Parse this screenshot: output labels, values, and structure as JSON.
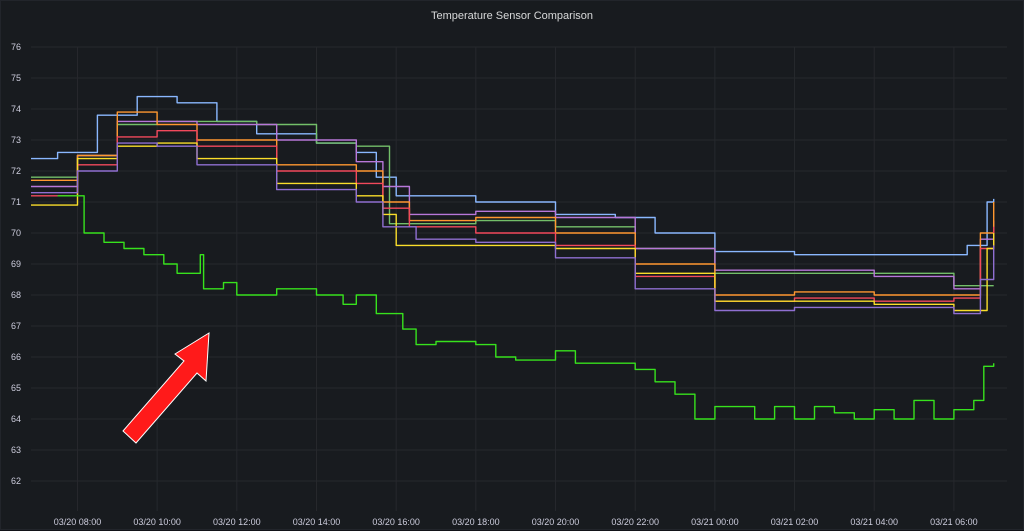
{
  "panel": {
    "title": "Temperature Sensor Comparison"
  },
  "chart_data": {
    "type": "line",
    "title": "Temperature Sensor Comparison",
    "xlabel": "",
    "ylabel": "",
    "x_time_format": "MM/DD HH:mm",
    "xlim": [
      "03/20 06:50",
      "03/21 07:20"
    ],
    "ylim": [
      62,
      76
    ],
    "yticks": [
      62,
      63,
      64,
      65,
      66,
      67,
      68,
      69,
      70,
      71,
      72,
      73,
      74,
      75,
      76
    ],
    "xticks": [
      "03/20 08:00",
      "03/20 10:00",
      "03/20 12:00",
      "03/20 14:00",
      "03/20 16:00",
      "03/20 18:00",
      "03/20 20:00",
      "03/20 22:00",
      "03/21 00:00",
      "03/21 02:00",
      "03/21 04:00",
      "03/21 06:00"
    ],
    "grid": true,
    "legend": "none",
    "annotation": "red arrow pointing at green (lowest) series near 03/20 11:45",
    "series": [
      {
        "color": "#8ab8ff",
        "points": [
          [
            "03/20 06:50",
            72.4
          ],
          [
            "03/20 07:30",
            72.6
          ],
          [
            "03/20 08:30",
            73.8
          ],
          [
            "03/20 09:30",
            74.4
          ],
          [
            "03/20 10:30",
            74.2
          ],
          [
            "03/20 11:30",
            73.6
          ],
          [
            "03/20 12:30",
            73.2
          ],
          [
            "03/20 14:00",
            72.9
          ],
          [
            "03/20 15:00",
            72.6
          ],
          [
            "03/20 15:30",
            71.8
          ],
          [
            "03/20 16:00",
            71.2
          ],
          [
            "03/20 18:00",
            71.0
          ],
          [
            "03/20 20:00",
            70.6
          ],
          [
            "03/20 21:30",
            70.5
          ],
          [
            "03/20 22:30",
            70.0
          ],
          [
            "03/21 00:00",
            69.4
          ],
          [
            "03/21 02:00",
            69.3
          ],
          [
            "03/21 04:00",
            69.3
          ],
          [
            "03/21 05:40",
            69.3
          ],
          [
            "03/21 06:20",
            69.6
          ],
          [
            "03/21 06:50",
            71.0
          ],
          [
            "03/21 07:00",
            71.1
          ]
        ]
      },
      {
        "color": "#73bf69",
        "points": [
          [
            "03/20 06:50",
            71.8
          ],
          [
            "03/20 08:00",
            72.5
          ],
          [
            "03/20 09:00",
            73.5
          ],
          [
            "03/20 10:00",
            73.6
          ],
          [
            "03/20 11:00",
            73.6
          ],
          [
            "03/20 12:30",
            73.5
          ],
          [
            "03/20 14:00",
            72.9
          ],
          [
            "03/20 15:00",
            72.8
          ],
          [
            "03/20 15:45",
            72.8
          ],
          [
            "03/20 15:50",
            70.3
          ],
          [
            "03/20 18:00",
            70.4
          ],
          [
            "03/20 20:00",
            70.2
          ],
          [
            "03/20 22:00",
            69.5
          ],
          [
            "03/21 00:00",
            68.7
          ],
          [
            "03/21 02:00",
            68.7
          ],
          [
            "03/21 04:00",
            68.7
          ],
          [
            "03/21 06:00",
            68.3
          ],
          [
            "03/21 07:00",
            68.3
          ]
        ]
      },
      {
        "color": "#b877d9",
        "points": [
          [
            "03/20 06:50",
            71.5
          ],
          [
            "03/20 08:00",
            72.5
          ],
          [
            "03/20 09:00",
            73.6
          ],
          [
            "03/20 10:00",
            73.6
          ],
          [
            "03/20 11:00",
            73.5
          ],
          [
            "03/20 13:00",
            73.0
          ],
          [
            "03/20 15:00",
            72.3
          ],
          [
            "03/20 15:40",
            71.5
          ],
          [
            "03/20 16:20",
            70.6
          ],
          [
            "03/20 18:00",
            70.7
          ],
          [
            "03/20 20:00",
            70.5
          ],
          [
            "03/20 22:00",
            69.5
          ],
          [
            "03/21 00:00",
            68.8
          ],
          [
            "03/21 02:00",
            68.8
          ],
          [
            "03/21 04:00",
            68.6
          ],
          [
            "03/21 06:00",
            68.2
          ],
          [
            "03/21 06:40",
            69.8
          ],
          [
            "03/21 07:00",
            70.4
          ]
        ]
      },
      {
        "color": "#ff9830",
        "points": [
          [
            "03/20 06:50",
            71.7
          ],
          [
            "03/20 08:00",
            72.5
          ],
          [
            "03/20 09:00",
            73.9
          ],
          [
            "03/20 10:00",
            73.5
          ],
          [
            "03/20 11:00",
            73.0
          ],
          [
            "03/20 13:00",
            72.2
          ],
          [
            "03/20 15:00",
            72.0
          ],
          [
            "03/20 15:40",
            71.0
          ],
          [
            "03/20 16:20",
            70.4
          ],
          [
            "03/20 18:00",
            70.5
          ],
          [
            "03/20 20:00",
            70.0
          ],
          [
            "03/20 22:00",
            69.0
          ],
          [
            "03/21 00:00",
            68.0
          ],
          [
            "03/21 02:00",
            68.1
          ],
          [
            "03/21 04:00",
            68.0
          ],
          [
            "03/21 06:00",
            68.0
          ],
          [
            "03/21 06:40",
            70.0
          ],
          [
            "03/21 07:00",
            71.0
          ]
        ]
      },
      {
        "color": "#f2495c",
        "points": [
          [
            "03/20 06:50",
            71.2
          ],
          [
            "03/20 08:00",
            72.2
          ],
          [
            "03/20 09:00",
            73.1
          ],
          [
            "03/20 10:00",
            73.3
          ],
          [
            "03/20 11:00",
            72.8
          ],
          [
            "03/20 13:00",
            72.0
          ],
          [
            "03/20 15:00",
            71.6
          ],
          [
            "03/20 15:40",
            70.8
          ],
          [
            "03/20 16:20",
            70.2
          ],
          [
            "03/20 18:00",
            70.0
          ],
          [
            "03/20 20:00",
            69.6
          ],
          [
            "03/20 22:00",
            68.6
          ],
          [
            "03/21 00:00",
            67.8
          ],
          [
            "03/21 02:00",
            67.9
          ],
          [
            "03/21 04:00",
            67.8
          ],
          [
            "03/21 06:00",
            67.9
          ],
          [
            "03/21 06:40",
            69.5
          ],
          [
            "03/21 07:00",
            70.2
          ]
        ]
      },
      {
        "color": "#fade2a",
        "points": [
          [
            "03/20 06:50",
            70.9
          ],
          [
            "03/20 07:30",
            70.9
          ],
          [
            "03/20 08:00",
            72.4
          ],
          [
            "03/20 09:00",
            72.8
          ],
          [
            "03/20 10:00",
            72.9
          ],
          [
            "03/20 11:00",
            72.4
          ],
          [
            "03/20 13:00",
            71.6
          ],
          [
            "03/20 15:00",
            71.2
          ],
          [
            "03/20 15:40",
            70.6
          ],
          [
            "03/20 16:00",
            69.6
          ],
          [
            "03/20 18:00",
            69.6
          ],
          [
            "03/20 20:00",
            69.5
          ],
          [
            "03/20 22:00",
            68.7
          ],
          [
            "03/21 00:00",
            67.8
          ],
          [
            "03/21 02:00",
            67.8
          ],
          [
            "03/21 04:00",
            67.7
          ],
          [
            "03/21 06:00",
            67.5
          ],
          [
            "03/21 06:40",
            67.5
          ],
          [
            "03/21 06:50",
            69.5
          ],
          [
            "03/21 07:00",
            70.0
          ]
        ]
      },
      {
        "color": "#8f6fd1",
        "points": [
          [
            "03/20 06:50",
            71.3
          ],
          [
            "03/20 08:00",
            72.0
          ],
          [
            "03/20 09:00",
            72.9
          ],
          [
            "03/20 10:00",
            72.8
          ],
          [
            "03/20 11:00",
            72.2
          ],
          [
            "03/20 13:00",
            71.4
          ],
          [
            "03/20 15:00",
            71.0
          ],
          [
            "03/20 15:40",
            70.2
          ],
          [
            "03/20 16:30",
            69.8
          ],
          [
            "03/20 18:00",
            69.7
          ],
          [
            "03/20 20:00",
            69.2
          ],
          [
            "03/20 22:00",
            68.2
          ],
          [
            "03/21 00:00",
            67.5
          ],
          [
            "03/21 02:00",
            67.6
          ],
          [
            "03/21 04:00",
            67.6
          ],
          [
            "03/21 06:00",
            67.4
          ],
          [
            "03/21 06:40",
            68.5
          ],
          [
            "03/21 07:00",
            69.6
          ]
        ]
      },
      {
        "color": "#37e21d",
        "points": [
          [
            "03/20 07:30",
            71.2
          ],
          [
            "03/20 07:55",
            71.2
          ],
          [
            "03/20 08:10",
            70.0
          ],
          [
            "03/20 08:40",
            69.7
          ],
          [
            "03/20 09:10",
            69.5
          ],
          [
            "03/20 09:40",
            69.3
          ],
          [
            "03/20 10:10",
            69.0
          ],
          [
            "03/20 10:30",
            68.7
          ],
          [
            "03/20 11:00",
            68.7
          ],
          [
            "03/20 11:05",
            69.3
          ],
          [
            "03/20 11:10",
            68.2
          ],
          [
            "03/20 11:40",
            68.4
          ],
          [
            "03/20 12:00",
            68.0
          ],
          [
            "03/20 13:00",
            68.2
          ],
          [
            "03/20 14:00",
            68.0
          ],
          [
            "03/20 14:40",
            67.7
          ],
          [
            "03/20 15:00",
            68.0
          ],
          [
            "03/20 15:30",
            67.4
          ],
          [
            "03/20 16:10",
            66.9
          ],
          [
            "03/20 16:30",
            66.4
          ],
          [
            "03/20 17:00",
            66.5
          ],
          [
            "03/20 18:00",
            66.4
          ],
          [
            "03/20 18:30",
            66.0
          ],
          [
            "03/20 19:00",
            65.9
          ],
          [
            "03/20 20:00",
            66.2
          ],
          [
            "03/20 20:30",
            65.8
          ],
          [
            "03/20 21:00",
            65.8
          ],
          [
            "03/20 22:00",
            65.6
          ],
          [
            "03/20 22:30",
            65.2
          ],
          [
            "03/20 23:00",
            64.8
          ],
          [
            "03/20 23:30",
            64.0
          ],
          [
            "03/21 00:00",
            64.4
          ],
          [
            "03/21 01:00",
            64.0
          ],
          [
            "03/21 01:30",
            64.4
          ],
          [
            "03/21 02:00",
            64.0
          ],
          [
            "03/21 02:30",
            64.4
          ],
          [
            "03/21 03:00",
            64.2
          ],
          [
            "03/21 03:30",
            64.0
          ],
          [
            "03/21 04:00",
            64.3
          ],
          [
            "03/21 04:30",
            64.0
          ],
          [
            "03/21 05:00",
            64.6
          ],
          [
            "03/21 05:30",
            64.0
          ],
          [
            "03/21 06:00",
            64.3
          ],
          [
            "03/21 06:30",
            64.6
          ],
          [
            "03/21 06:45",
            65.7
          ],
          [
            "03/21 07:00",
            65.8
          ]
        ]
      }
    ]
  }
}
